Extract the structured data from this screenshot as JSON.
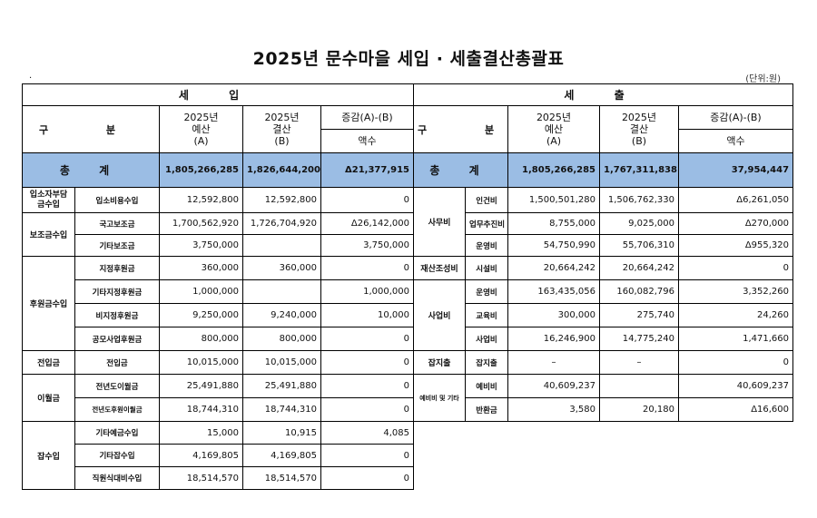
{
  "title": "2025년 문수마을 세입 · 세출결산총괄표",
  "dot": ".",
  "unit": "(단위:원)",
  "revenue": {
    "header": "세 입",
    "col_category": "구 분",
    "col_budget": [
      "2025년",
      "예산",
      "(A)"
    ],
    "col_settle": [
      "2025년",
      "결산",
      "(B)"
    ],
    "col_diff": "증감(A)-(B)",
    "col_amount": "액수",
    "total_label": "총 계",
    "total_budget": "1,805,266,285",
    "total_settle": "1,826,644,200",
    "total_diff": "Δ21,377,915",
    "rows": [
      {
        "cat": "입소자부담금수입",
        "item": "입소비용수입",
        "budget": "12,592,800",
        "settle": "12,592,800",
        "diff": "0"
      },
      {
        "cat": "보조금수입",
        "item": "국고보조금",
        "budget": "1,700,562,920",
        "settle": "1,726,704,920",
        "diff": "Δ26,142,000"
      },
      {
        "cat": "",
        "item": "기타보조금",
        "budget": "3,750,000",
        "settle": "",
        "diff": "3,750,000"
      },
      {
        "cat": "후원금수입",
        "item": "지정후원금",
        "budget": "360,000",
        "settle": "360,000",
        "diff": "0"
      },
      {
        "cat": "",
        "item": "기타지정후원금",
        "budget": "1,000,000",
        "settle": "",
        "diff": "1,000,000"
      },
      {
        "cat": "",
        "item": "비지정후원금",
        "budget": "9,250,000",
        "settle": "9,240,000",
        "diff": "10,000"
      },
      {
        "cat": "",
        "item": "공모사업후원금",
        "budget": "800,000",
        "settle": "800,000",
        "diff": "0"
      },
      {
        "cat": "전입금",
        "item": "전입금",
        "budget": "10,015,000",
        "settle": "10,015,000",
        "diff": "0"
      },
      {
        "cat": "이월금",
        "item": "전년도이월금",
        "budget": "25,491,880",
        "settle": "25,491,880",
        "diff": "0"
      },
      {
        "cat": "",
        "item": "전년도후원이월금",
        "budget": "18,744,310",
        "settle": "18,744,310",
        "diff": "0"
      },
      {
        "cat": "잡수입",
        "item": "기타예금수입",
        "budget": "15,000",
        "settle": "10,915",
        "diff": "4,085"
      },
      {
        "cat": "",
        "item": "기타잡수입",
        "budget": "4,169,805",
        "settle": "4,169,805",
        "diff": "0"
      },
      {
        "cat": "",
        "item": "직원식대비수입",
        "budget": "18,514,570",
        "settle": "18,514,570",
        "diff": "0"
      }
    ]
  },
  "expense": {
    "header": "세 출",
    "col_category": "구 분",
    "col_budget": [
      "2025년",
      "예산",
      "(A)"
    ],
    "col_settle": [
      "2025년",
      "결산",
      "(B)"
    ],
    "col_diff": "증감(A)-(B)",
    "col_amount": "액수",
    "total_label": "총 계",
    "total_budget": "1,805,266,285",
    "total_settle": "1,767,311,838",
    "total_diff": "37,954,447",
    "rows": [
      {
        "cat": "사무비",
        "item": "인건비",
        "budget": "1,500,501,280",
        "settle": "1,506,762,330",
        "diff": "Δ6,261,050"
      },
      {
        "cat": "",
        "item": "업무추진비",
        "budget": "8,755,000",
        "settle": "9,025,000",
        "diff": "Δ270,000"
      },
      {
        "cat": "",
        "item": "운영비",
        "budget": "54,750,990",
        "settle": "55,706,310",
        "diff": "Δ955,320"
      },
      {
        "cat": "재산조성비",
        "item": "시설비",
        "budget": "20,664,242",
        "settle": "20,664,242",
        "diff": "0"
      },
      {
        "cat": "사업비",
        "item": "운영비",
        "budget": "163,435,056",
        "settle": "160,082,796",
        "diff": "3,352,260"
      },
      {
        "cat": "",
        "item": "교육비",
        "budget": "300,000",
        "settle": "275,740",
        "diff": "24,260"
      },
      {
        "cat": "",
        "item": "사업비",
        "budget": "16,246,900",
        "settle": "14,775,240",
        "diff": "1,471,660"
      },
      {
        "cat": "잡지출",
        "item": "잡지출",
        "budget": "–",
        "settle": "–",
        "diff": "0"
      },
      {
        "cat": "예비비 및 기타",
        "item": "예비비",
        "budget": "40,609,237",
        "settle": "",
        "diff": "40,609,237"
      },
      {
        "cat": "",
        "item": "반환금",
        "budget": "3,580",
        "settle": "20,180",
        "diff": "Δ16,600"
      }
    ]
  }
}
